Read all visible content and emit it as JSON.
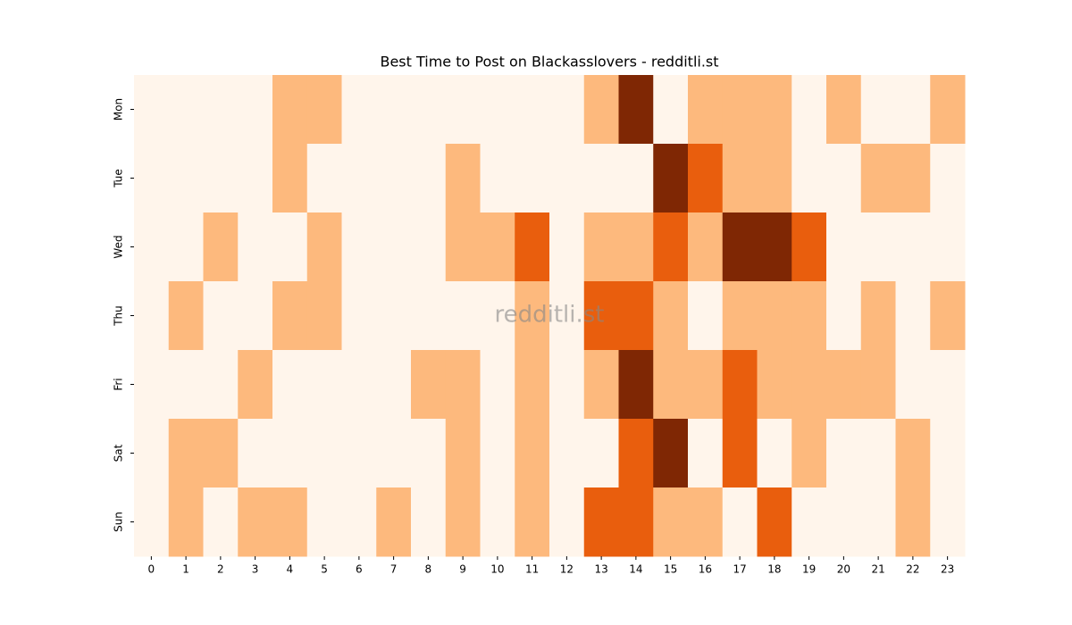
{
  "chart_data": {
    "type": "heatmap",
    "title": "Best Time to Post on Blackasslovers - redditli.st",
    "watermark": "redditli.st",
    "x_categories": [
      0,
      1,
      2,
      3,
      4,
      5,
      6,
      7,
      8,
      9,
      10,
      11,
      12,
      13,
      14,
      15,
      16,
      17,
      18,
      19,
      20,
      21,
      22,
      23
    ],
    "y_categories": [
      "Mon",
      "Tue",
      "Wed",
      "Thu",
      "Fri",
      "Sat",
      "Sun"
    ],
    "values": [
      [
        0,
        0,
        0,
        0,
        1,
        1,
        0,
        0,
        0,
        0,
        0,
        0,
        0,
        1,
        3,
        0,
        1,
        1,
        1,
        0,
        1,
        0,
        0,
        1
      ],
      [
        0,
        0,
        0,
        0,
        1,
        0,
        0,
        0,
        0,
        1,
        0,
        0,
        0,
        0,
        0,
        3,
        2,
        1,
        1,
        0,
        0,
        1,
        1,
        0
      ],
      [
        0,
        0,
        1,
        0,
        0,
        1,
        0,
        0,
        0,
        1,
        1,
        2,
        0,
        1,
        1,
        2,
        1,
        3,
        3,
        2,
        0,
        0,
        0,
        0
      ],
      [
        0,
        1,
        0,
        0,
        1,
        1,
        0,
        0,
        0,
        0,
        0,
        1,
        0,
        2,
        2,
        1,
        0,
        1,
        1,
        1,
        0,
        1,
        0,
        1
      ],
      [
        0,
        0,
        0,
        1,
        0,
        0,
        0,
        0,
        1,
        1,
        0,
        1,
        0,
        1,
        3,
        1,
        1,
        2,
        1,
        1,
        1,
        1,
        0,
        0
      ],
      [
        0,
        1,
        1,
        0,
        0,
        0,
        0,
        0,
        0,
        1,
        0,
        1,
        0,
        0,
        2,
        3,
        0,
        2,
        0,
        1,
        0,
        0,
        1,
        0
      ],
      [
        0,
        1,
        0,
        1,
        1,
        0,
        0,
        1,
        0,
        1,
        0,
        1,
        0,
        2,
        2,
        1,
        1,
        0,
        2,
        0,
        0,
        0,
        1,
        0
      ]
    ],
    "colors": [
      "#fff5eb",
      "#fdb97d",
      "#e95e0d",
      "#7f2704"
    ]
  }
}
